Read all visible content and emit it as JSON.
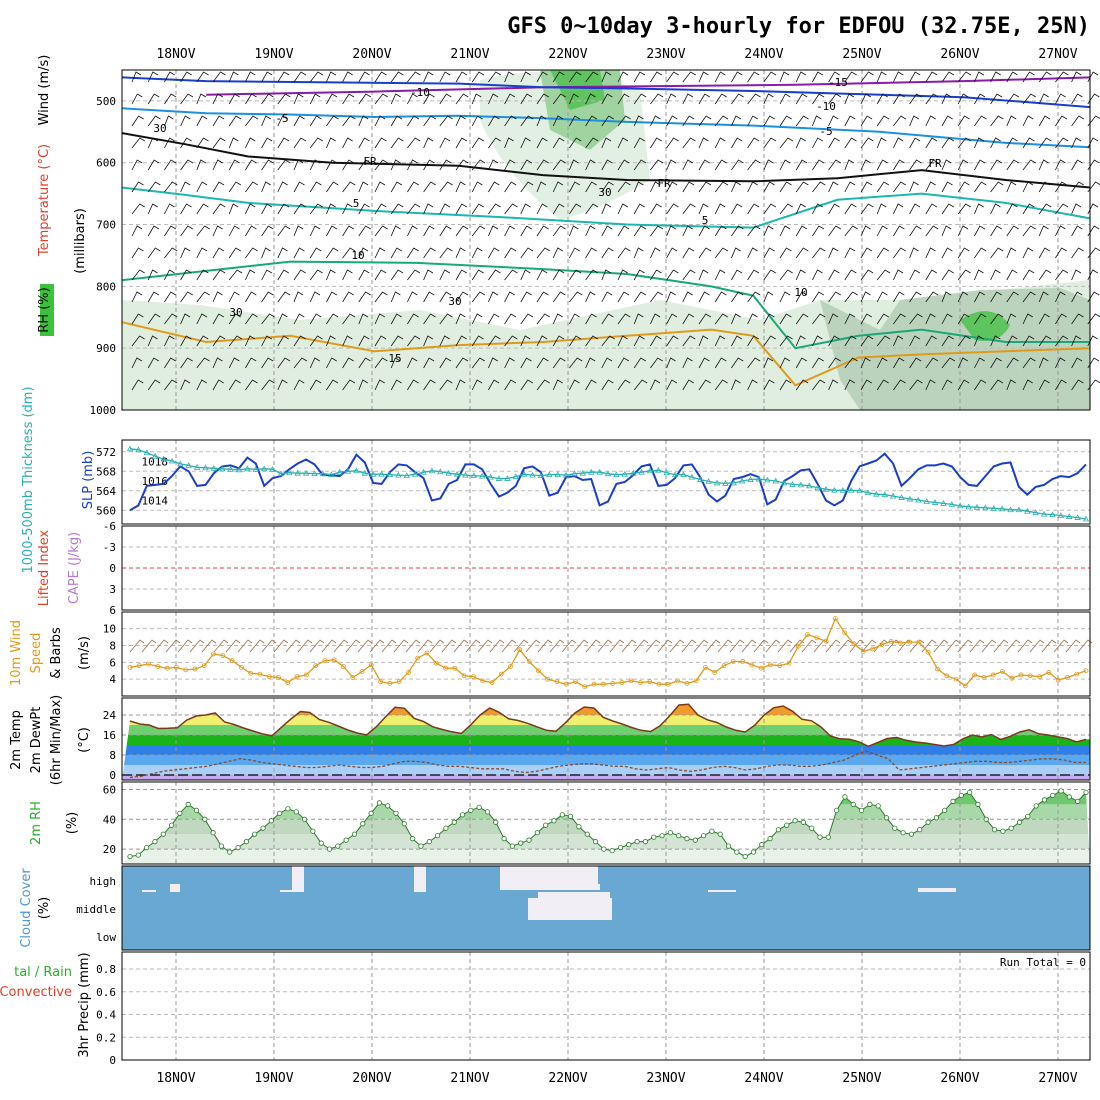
{
  "title": "GFS 0~10day 3-hourly for EDFOU (32.75E, 25N)",
  "chart_data": [
    {
      "type": "heatmap",
      "name": "upper-air",
      "dates": [
        "18NOV",
        "19NOV",
        "20NOV",
        "21NOV",
        "22NOV",
        "23NOV",
        "24NOV",
        "25NOV",
        "26NOV",
        "27NOV"
      ],
      "y_axis": {
        "label": "(millibars)",
        "ticks": [
          500,
          600,
          700,
          800,
          900,
          1000
        ]
      },
      "label_wind": "Wind (m/s)",
      "label_temp": "Temperature (°C)",
      "label_rh": "RH (%)",
      "contour_labels": [
        "-15",
        "-10",
        "-10",
        "-5",
        "-5",
        "FR",
        "FR",
        "FR",
        "5",
        "5",
        "10",
        "10",
        "15",
        "30",
        "30",
        "30",
        "30"
      ],
      "temperature_lines": [
        {
          "name": "-15",
          "color": "#8a1aa8",
          "points": [
            [
              20,
              490
            ],
            [
              60,
              485
            ],
            [
              100,
              478
            ],
            [
              160,
              474
            ],
            [
              200,
              468
            ],
            [
              230,
              462
            ]
          ]
        },
        {
          "name": "-10",
          "color": "#1a3ec8",
          "points": [
            [
              0,
              462
            ],
            [
              20,
              468
            ],
            [
              50,
              470
            ],
            [
              80,
              472
            ],
            [
              100,
              478
            ],
            [
              120,
              480
            ],
            [
              150,
              484
            ],
            [
              170,
              488
            ],
            [
              200,
              494
            ],
            [
              230,
              510
            ]
          ]
        },
        {
          "name": "-5",
          "color": "#1a90e0",
          "points": [
            [
              0,
              512
            ],
            [
              20,
              520
            ],
            [
              40,
              522
            ],
            [
              60,
              526
            ],
            [
              80,
              524
            ],
            [
              100,
              528
            ],
            [
              120,
              534
            ],
            [
              150,
              540
            ],
            [
              180,
              550
            ],
            [
              210,
              568
            ],
            [
              230,
              575
            ]
          ]
        },
        {
          "name": "FR",
          "color": "#111111",
          "points": [
            [
              0,
              552
            ],
            [
              15,
              570
            ],
            [
              30,
              590
            ],
            [
              50,
              600
            ],
            [
              80,
              605
            ],
            [
              100,
              620
            ],
            [
              120,
              628
            ],
            [
              150,
              630
            ],
            [
              170,
              625
            ],
            [
              190,
              612
            ],
            [
              210,
              628
            ],
            [
              230,
              640
            ]
          ]
        },
        {
          "name": "5",
          "color": "#1ab8b0",
          "points": [
            [
              0,
              640
            ],
            [
              15,
              652
            ],
            [
              30,
              665
            ],
            [
              60,
              678
            ],
            [
              90,
              688
            ],
            [
              120,
              700
            ],
            [
              150,
              705
            ],
            [
              170,
              660
            ],
            [
              190,
              650
            ],
            [
              210,
              665
            ],
            [
              230,
              690
            ]
          ]
        },
        {
          "name": "10",
          "color": "#1aa87a",
          "points": [
            [
              0,
              790
            ],
            [
              20,
              775
            ],
            [
              40,
              760
            ],
            [
              70,
              762
            ],
            [
              100,
              772
            ],
            [
              120,
              780
            ],
            [
              140,
              800
            ],
            [
              150,
              815
            ],
            [
              160,
              900
            ],
            [
              175,
              880
            ],
            [
              190,
              870
            ],
            [
              210,
              890
            ],
            [
              230,
              890
            ]
          ]
        },
        {
          "name": "15",
          "color": "#e09a1a",
          "points": [
            [
              0,
              858
            ],
            [
              20,
              890
            ],
            [
              40,
              880
            ],
            [
              60,
              905
            ],
            [
              80,
              895
            ],
            [
              100,
              890
            ],
            [
              120,
              880
            ],
            [
              140,
              870
            ],
            [
              150,
              880
            ],
            [
              160,
              960
            ],
            [
              175,
              915
            ],
            [
              190,
              910
            ],
            [
              210,
              905
            ],
            [
              230,
              900
            ]
          ]
        }
      ]
    },
    {
      "type": "line",
      "name": "SLP and thickness",
      "ylabel": "SLP (mb)",
      "ylabel2": "1000-500mb Thickness (dm)",
      "yticks_left": [
        560,
        564,
        568,
        572
      ],
      "yticks_right": [
        1014,
        1016,
        1018
      ],
      "series": [
        {
          "name": "SLP (mb)",
          "color": "#1a3ec8",
          "axis": "right",
          "values": [
            1013.0,
            1013.5,
            1015.5,
            1015.6,
            1015.7,
            1016.5,
            1017.5,
            1017.0,
            1015.5,
            1015.6,
            1016.8,
            1017.5,
            1017.6,
            1017.3,
            1018.4,
            1017.8,
            1015.5,
            1016.3,
            1016.5,
            1017.2,
            1017.8,
            1018.2,
            1017.7,
            1016.6,
            1016.6,
            1016.5,
            1017.2,
            1018.7,
            1017.9,
            1015.8,
            1015.7,
            1016.9,
            1017.7,
            1017.6,
            1016.9,
            1016.3,
            1014.0,
            1014.2,
            1015.7,
            1016.1,
            1017.7,
            1017.7,
            1017.2,
            1015.7,
            1014.4,
            1014.8,
            1015.5,
            1017.3,
            1017.5,
            1016.9,
            1014.5,
            1014.8,
            1016.4,
            1016.5,
            1016.1,
            1016.2,
            1013.5,
            1013.9,
            1015.7,
            1015.9,
            1016.6,
            1017.5,
            1017.7,
            1015.5,
            1015.6,
            1016.3,
            1017.6,
            1017.7,
            1016.4,
            1014.6,
            1013.9,
            1014.5,
            1016.2,
            1016.4,
            1016.7,
            1016.4,
            1013.6,
            1014.1,
            1016.0,
            1016.5,
            1017.1,
            1017.2,
            1015.7,
            1014.0,
            1013.5,
            1014.0,
            1016.0,
            1017.5,
            1017.8,
            1018.1,
            1018.8,
            1017.8,
            1015.5,
            1016.3,
            1017.2,
            1017.6,
            1017.6,
            1017.8,
            1017.5,
            1016.4,
            1015.6,
            1015.5,
            1016.5,
            1017.5,
            1017.8,
            1017.9,
            1015.4,
            1014.6,
            1015.4,
            1015.6,
            1016.2,
            1016.5,
            1016.4,
            1016.8,
            1017.7
          ]
        },
        {
          "name": "1000-500mb Thickness (dm)",
          "color": "#2ab0b0",
          "axis": "left",
          "values": [
            572.6,
            572.4,
            571.8,
            571.1,
            570.5,
            570.1,
            569.5,
            569.2,
            568.8,
            568.7,
            568.6,
            568.5,
            568.4,
            568.3,
            568.5,
            568.4,
            568.5,
            568.4,
            567.5,
            567.7,
            567.6,
            567.6,
            567.5,
            567.5,
            567.3,
            567.8,
            568.0,
            568.1,
            567.6,
            567.4,
            567.4,
            567.3,
            567.2,
            567.1,
            567.4,
            567.8,
            568.1,
            567.9,
            567.6,
            567.4,
            567.2,
            567.1,
            567.0,
            566.8,
            566.5,
            566.5,
            566.9,
            567.4,
            567.2,
            567.1,
            567.3,
            567.3,
            567.2,
            567.5,
            567.6,
            567.8,
            567.8,
            567.5,
            567.3,
            567.4,
            567.6,
            567.8,
            568.1,
            568.2,
            567.7,
            567.3,
            567.3,
            566.8,
            566.3,
            565.9,
            565.6,
            565.5,
            565.6,
            566.0,
            566.3,
            566.4,
            566.2,
            566.0,
            565.6,
            565.3,
            565.2,
            565.0,
            564.6,
            564.3,
            564.1,
            564.1,
            564.1,
            564.0,
            563.6,
            563.3,
            563.2,
            562.9,
            562.6,
            562.3,
            562.1,
            561.8,
            561.6,
            561.4,
            561.2,
            560.9,
            560.7,
            560.6,
            560.5,
            560.4,
            560.3,
            560.1,
            560.1,
            559.8,
            559.5,
            559.2,
            559.1,
            558.9,
            558.7,
            558.5,
            558.2
          ]
        }
      ]
    },
    {
      "type": "line",
      "name": "stability",
      "ylabel": "Lifted Index",
      "ylabel2": "CAPE (J/kg)",
      "yticks": [
        "-6",
        "-3",
        "0",
        "3",
        "6"
      ],
      "values": []
    },
    {
      "type": "line",
      "name": "10m wind",
      "ylabel": "10m Wind Speed & Barbs",
      "unit": "(m/s)",
      "yticks": [
        4,
        6,
        8,
        10
      ],
      "values": [
        5.4,
        5.6,
        5.8,
        5.5,
        5.3,
        5.4,
        5.1,
        5.2,
        5.6,
        7.0,
        6.8,
        6.2,
        5.4,
        4.7,
        4.6,
        4.3,
        4.2,
        3.6,
        4.3,
        4.5,
        5.6,
        6.2,
        6.3,
        5.5,
        4.2,
        4.9,
        5.7,
        3.7,
        3.5,
        3.7,
        4.8,
        6.5,
        7.1,
        5.9,
        5.3,
        5.3,
        4.4,
        4.3,
        3.8,
        3.6,
        4.6,
        5.5,
        7.5,
        6.1,
        5.0,
        4.0,
        3.7,
        3.4,
        3.7,
        3.1,
        3.4,
        3.4,
        3.5,
        3.6,
        3.8,
        3.6,
        3.7,
        3.4,
        3.4,
        3.8,
        3.5,
        3.8,
        5.4,
        4.8,
        5.6,
        6.1,
        6.1,
        5.7,
        5.3,
        5.7,
        5.6,
        5.9,
        7.9,
        9.3,
        8.9,
        8.5,
        11.2,
        9.5,
        8.2,
        7.3,
        7.6,
        8.1,
        8.5,
        8.3,
        8.4,
        8.4,
        7.2,
        5.2,
        4.4,
        4.0,
        3.2,
        4.5,
        4.2,
        4.5,
        4.9,
        4.1,
        4.5,
        4.4,
        4.3,
        4.8,
        3.9,
        4.2,
        4.6,
        5.0
      ]
    },
    {
      "type": "area",
      "name": "2m temperature",
      "ylabel": "2m Temp 2m DewPt (6hr Min/Max)",
      "unit": "(°C)",
      "yticks": [
        0,
        8,
        16,
        24
      ],
      "temperature": [
        21.6,
        20.4,
        20.0,
        18.6,
        18.7,
        18.9,
        22.0,
        23.6,
        24.0,
        24.8,
        21.2,
        20.2,
        18.8,
        17.6,
        16.5,
        15.7,
        19.1,
        22.4,
        25.4,
        25.0,
        22.2,
        21.1,
        19.6,
        18.0,
        16.8,
        16.0,
        19.2,
        23.3,
        27.1,
        26.7,
        22.7,
        21.4,
        19.3,
        18.2,
        17.3,
        16.6,
        20.1,
        24.0,
        26.8,
        25.1,
        22.5,
        21.8,
        20.7,
        19.3,
        17.9,
        17.5,
        20.9,
        24.8,
        27.2,
        26.8,
        23.1,
        21.6,
        20.4,
        19.0,
        17.9,
        17.4,
        19.7,
        23.6,
        28.0,
        28.3,
        24.0,
        22.1,
        21.0,
        19.2,
        17.9,
        17.2,
        19.9,
        24.0,
        26.9,
        27.6,
        25.5,
        22.3,
        21.7,
        19.2,
        15.6,
        14.5,
        14.3,
        13.3,
        11.5,
        13.0,
        14.6,
        15.0,
        13.9,
        13.2,
        12.8,
        12.2,
        11.6,
        12.2,
        14.5,
        16.0,
        15.2,
        16.2,
        14.2,
        15.5,
        17.2,
        18.1,
        16.5,
        16.0,
        15.3,
        14.6,
        13.2,
        14.3
      ],
      "dewpoint": [
        -1.0,
        -0.5,
        0.5,
        1.5,
        2.0,
        2.5,
        3.0,
        3.5,
        4.5,
        5.5,
        6.5,
        6.0,
        5.0,
        4.5,
        4.0,
        3.5,
        3.0,
        3.0,
        3.5,
        4.0,
        3.5,
        3.0,
        3.0,
        3.5,
        4.5,
        5.5,
        5.5,
        5.0,
        4.0,
        3.5,
        3.5,
        3.0,
        2.5,
        2.5,
        2.5,
        1.5,
        1.0,
        1.5,
        2.5,
        3.5,
        4.0,
        4.5,
        4.5,
        4.0,
        3.5,
        3.5,
        2.5,
        2.0,
        2.5,
        3.0,
        2.0,
        1.5,
        2.0,
        3.0,
        3.5,
        3.0,
        2.0,
        2.5,
        3.5,
        4.0,
        4.0,
        3.5,
        3.5,
        4.0,
        5.0,
        6.0,
        8.0,
        9.5,
        8.0,
        6.5,
        2.0,
        2.5,
        3.0,
        3.5,
        4.0,
        4.5,
        5.0,
        5.5,
        5.5,
        5.0,
        5.0,
        5.5,
        6.0,
        6.5,
        6.5,
        6.0,
        5.0,
        5.0
      ]
    },
    {
      "type": "area",
      "name": "2m RH",
      "ylabel": "2m RH",
      "unit": "(%)",
      "yticks": [
        20,
        40,
        60
      ],
      "values": [
        15,
        16,
        21,
        25,
        30,
        36,
        44,
        50,
        46,
        40,
        31,
        22,
        18,
        21,
        25,
        30,
        34,
        39,
        44,
        47,
        45,
        40,
        32,
        24,
        20,
        22,
        26,
        30,
        37,
        44,
        51,
        49,
        44,
        37,
        27,
        22,
        25,
        29,
        34,
        38,
        43,
        46,
        48,
        45,
        38,
        27,
        22,
        24,
        26,
        31,
        36,
        39,
        43,
        42,
        35,
        30,
        25,
        20,
        19,
        21,
        23,
        25,
        25,
        28,
        29,
        31,
        29,
        27,
        26,
        29,
        32,
        30,
        22,
        18,
        15,
        18,
        23,
        27,
        33,
        36,
        39,
        38,
        34,
        28,
        28,
        46,
        55,
        50,
        46,
        50,
        49,
        41,
        34,
        31,
        30,
        33,
        38,
        41,
        46,
        52,
        56,
        58,
        50,
        40,
        33,
        32,
        34,
        38,
        42,
        49,
        53,
        56,
        59,
        55,
        52,
        58
      ]
    },
    {
      "type": "area",
      "name": "cloud cover",
      "ylabel": "Cloud Cover",
      "unit": "(%)",
      "yticks": [
        "high",
        "middle",
        "low"
      ]
    },
    {
      "type": "bar",
      "name": "precipitation",
      "ylabel": "3hr Precip (mm)",
      "ylabel2": "Total / Rain Convective",
      "yticks": [
        0,
        0.2,
        0.4,
        0.6,
        0.8
      ],
      "annotation": "Run Total = 0",
      "values": []
    }
  ]
}
